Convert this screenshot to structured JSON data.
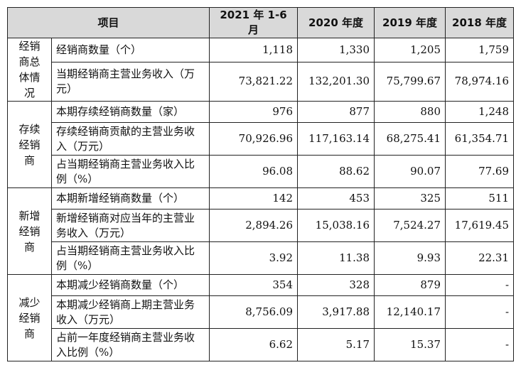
{
  "header": {
    "item": "项目",
    "years": [
      "2021 年 1-6 月",
      "2020 年度",
      "2019 年度",
      "2018 年度"
    ]
  },
  "groups": [
    {
      "label": "经销商总体情况",
      "rows": [
        {
          "label": "经销商数量（个）",
          "values": [
            "1,118",
            "1,330",
            "1,205",
            "1,759"
          ]
        },
        {
          "label": "当期经销商主营业务收入（万元）",
          "values": [
            "73,821.22",
            "132,201.30",
            "75,799.67",
            "78,974.16"
          ]
        }
      ]
    },
    {
      "label": "存续经销商",
      "rows": [
        {
          "label": "本期存续经销商数量（家）",
          "values": [
            "976",
            "877",
            "880",
            "1,248"
          ]
        },
        {
          "label": "存续经销商贡献的主营业务收入（万元）",
          "values": [
            "70,926.96",
            "117,163.14",
            "68,275.41",
            "61,354.71"
          ]
        },
        {
          "label": "占当期经销商主营业务收入比例（%）",
          "values": [
            "96.08",
            "88.62",
            "90.07",
            "77.69"
          ]
        }
      ]
    },
    {
      "label": "新增经销商",
      "rows": [
        {
          "label": "本期新增经销商数量（个）",
          "values": [
            "142",
            "453",
            "325",
            "511"
          ]
        },
        {
          "label": "新增经销商对应当年的主营业务收入（万元）",
          "values": [
            "2,894.26",
            "15,038.16",
            "7,524.27",
            "17,619.45"
          ]
        },
        {
          "label": "占当期经销商主营业务收入比例（%）",
          "values": [
            "3.92",
            "11.38",
            "9.93",
            "22.31"
          ]
        }
      ]
    },
    {
      "label": "减少经销商",
      "rows": [
        {
          "label": "本期减少经销商数量（个）",
          "values": [
            "354",
            "328",
            "879",
            "-"
          ]
        },
        {
          "label": "本期减少经销商上期主营业务收入（万元）",
          "values": [
            "8,756.09",
            "3,917.88",
            "12,140.17",
            "-"
          ]
        },
        {
          "label": "占前一年度经销商主营业务收入比例（%）",
          "values": [
            "6.62",
            "5.17",
            "15.37",
            "-"
          ]
        }
      ]
    }
  ]
}
